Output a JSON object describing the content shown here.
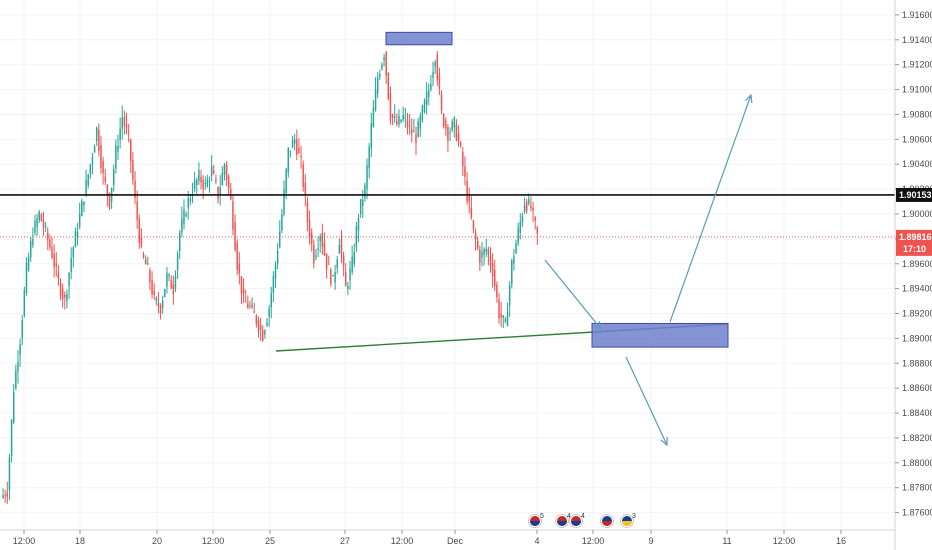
{
  "chart_data": {
    "type": "candlestick",
    "title": "",
    "xlabel": "",
    "ylabel": "",
    "ylim": [
      1.8746,
      1.9172
    ],
    "y_ticks": [
      "1.91600",
      "1.91400",
      "1.91200",
      "1.91000",
      "1.90800",
      "1.90600",
      "1.90400",
      "1.90200",
      "1.90000",
      "1.89800",
      "1.89600",
      "1.89400",
      "1.89200",
      "1.89000",
      "1.88800",
      "1.88600",
      "1.88400",
      "1.88200",
      "1.88000",
      "1.87800",
      "1.87600"
    ],
    "x_ticks": [
      "12:00",
      "18",
      "20",
      "12:00",
      "25",
      "27",
      "12:00",
      "Dec",
      "4",
      "12:00",
      "9",
      "11",
      "12:00",
      "16"
    ],
    "grid": true,
    "up_color": "#26a69a",
    "down_color": "#ef5350",
    "close_series": [
      1.8778,
      1.886,
      1.89,
      1.8955,
      1.8985,
      1.9,
      1.8985,
      1.8968,
      1.8945,
      1.893,
      1.8965,
      1.899,
      1.9015,
      1.904,
      1.9068,
      1.903,
      1.901,
      1.905,
      1.9078,
      1.906,
      1.901,
      1.8968,
      1.8955,
      1.893,
      1.8925,
      1.895,
      1.894,
      1.8985,
      1.9005,
      1.902,
      1.903,
      1.9022,
      1.9035,
      1.9015,
      1.904,
      1.901,
      1.896,
      1.893,
      1.8925,
      1.8915,
      1.8903,
      1.8925,
      1.896,
      1.9,
      1.905,
      1.906,
      1.904,
      1.8995,
      1.8965,
      1.8985,
      1.896,
      1.8945,
      1.898,
      1.894,
      1.896,
      1.9,
      1.902,
      1.907,
      1.911,
      1.913,
      1.908,
      1.9072,
      1.9078,
      1.9068,
      1.9062,
      1.9082,
      1.91,
      1.9128,
      1.908,
      1.9065,
      1.9072,
      1.905,
      1.9015,
      1.8985,
      1.8965,
      1.8972,
      1.8955,
      1.892,
      1.891,
      1.896,
      1.8985,
      1.901,
      1.9005,
      1.8982
    ],
    "series": [
      {
        "name": "",
        "type": "hline",
        "value": 1.90153
      },
      {
        "name": "",
        "type": "hline",
        "value": 1.89816,
        "style": "dotted"
      }
    ],
    "price_tags": [
      {
        "label": "1.90153",
        "value": 1.90153
      },
      {
        "label": "1.89816",
        "value": 1.89816,
        "sub_label": "17:10"
      }
    ],
    "annotations": [
      {
        "type": "trendline",
        "from": [
          25,
          1.8897
        ],
        "to": [
          11.5,
          1.8918
        ],
        "color": "#2e7d32"
      },
      {
        "type": "rectangle",
        "y": [
          1.9136,
          1.9146
        ],
        "color": "#6f7fcf"
      },
      {
        "type": "rectangle",
        "y": [
          1.8893,
          1.8912
        ],
        "color": "#6f7fcf"
      },
      {
        "type": "arrow",
        "label": "",
        "color": "#5b9bbd"
      },
      {
        "type": "arrow",
        "label": "",
        "color": "#5b9bbd"
      },
      {
        "type": "arrow",
        "label": "",
        "color": "#5b9bbd"
      }
    ],
    "event_markers": [
      {
        "flag": "us-au",
        "count": "5"
      },
      {
        "flag": "us-eu",
        "count": "4"
      },
      {
        "flag": "us-au",
        "count": "4"
      },
      {
        "flag": "au",
        "count": ""
      },
      {
        "flag": "eu",
        "count": "3"
      }
    ]
  }
}
